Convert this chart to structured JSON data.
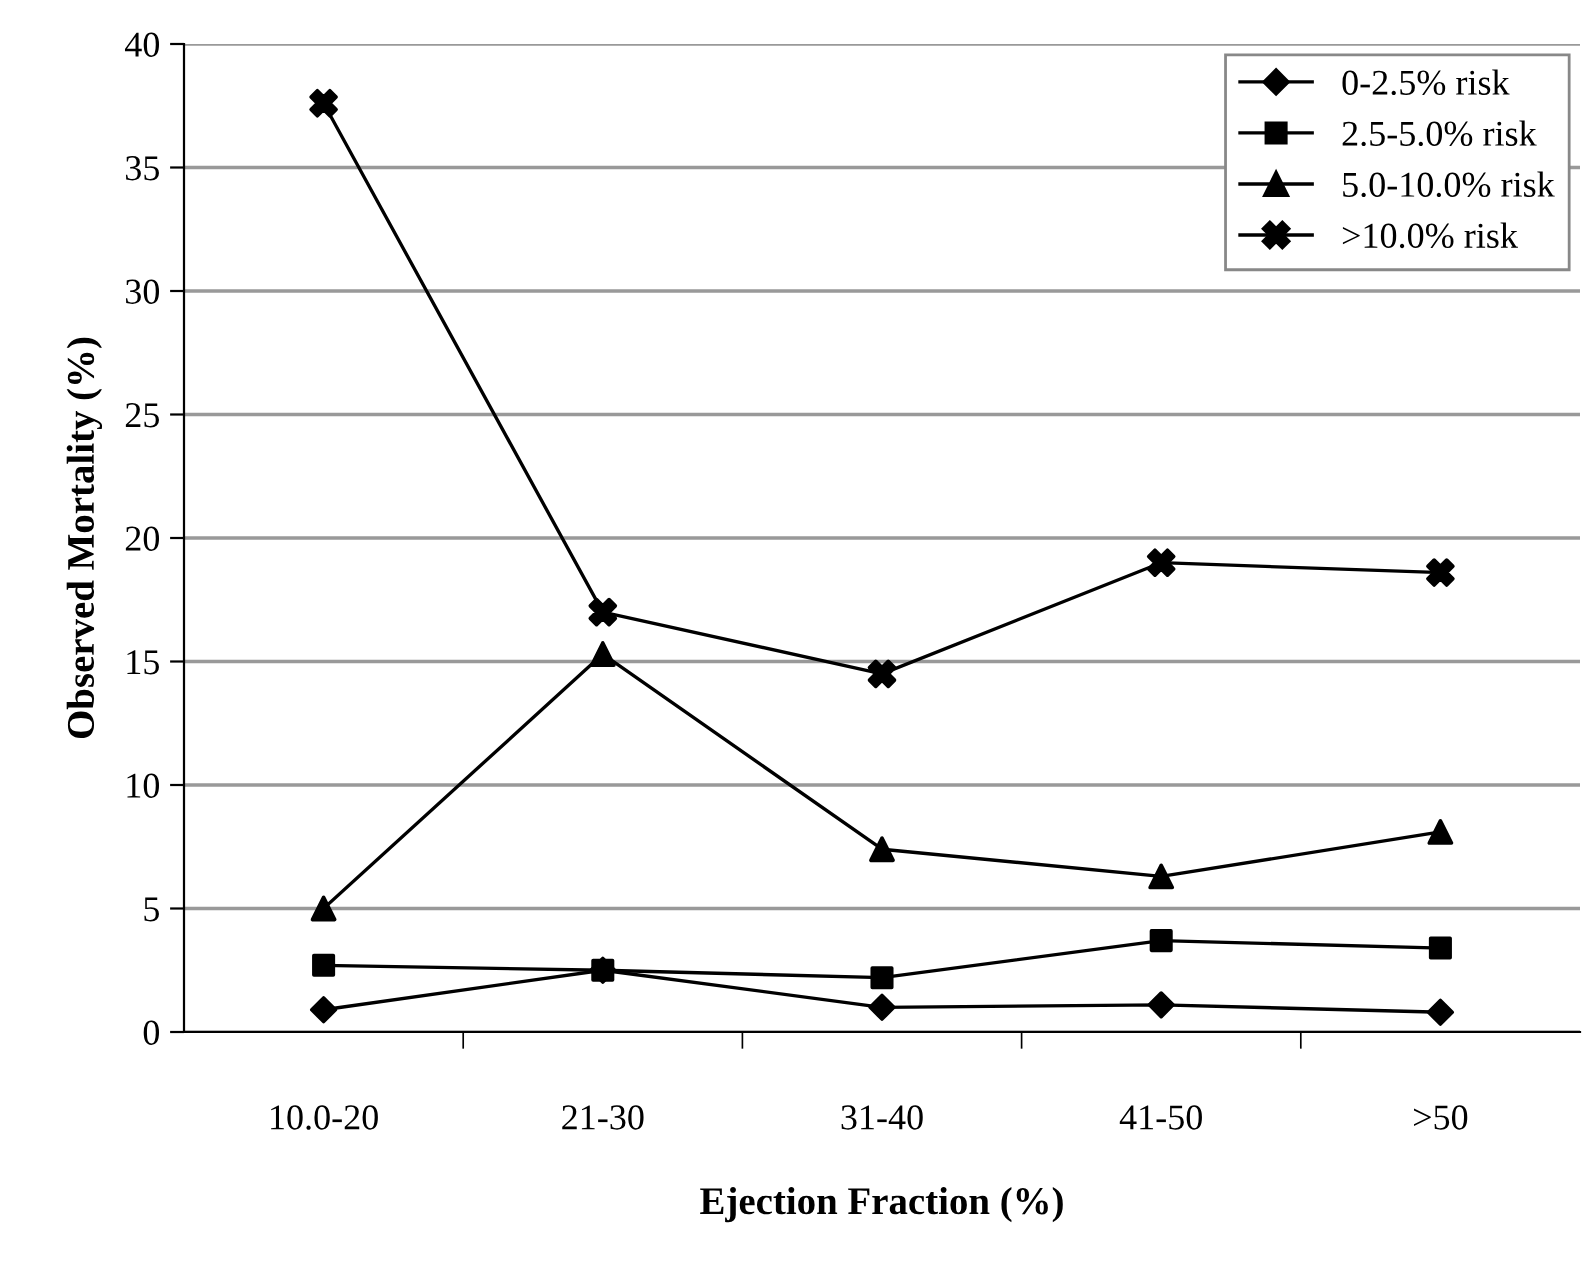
{
  "chart_data": {
    "type": "line",
    "xlabel": "Ejection Fraction (%)",
    "ylabel": "Observed Mortality (%)",
    "categories": [
      "10.0-20",
      "21-30",
      "31-40",
      "41-50",
      ">50"
    ],
    "series": [
      {
        "name": "0-2.5% risk",
        "color": "#000000",
        "marker": "diamond",
        "values": [
          0.9,
          2.5,
          1.0,
          1.1,
          0.8
        ]
      },
      {
        "name": "2.5-5.0% risk",
        "color": "#000000",
        "marker": "square",
        "values": [
          2.7,
          2.5,
          2.2,
          3.7,
          3.4
        ]
      },
      {
        "name": "5.0-10.0% risk",
        "color": "#000000",
        "marker": "triangle",
        "values": [
          5.0,
          15.3,
          7.4,
          6.3,
          8.1
        ]
      },
      {
        "name": ">10.0% risk",
        "color": "#000000",
        "marker": "cross",
        "values": [
          37.6,
          17.0,
          14.5,
          19.0,
          18.6
        ]
      }
    ],
    "ylim": [
      0,
      40
    ],
    "yticks": [
      0,
      5,
      10,
      15,
      20,
      25,
      30,
      35,
      40
    ],
    "grid": "y",
    "legend": "top right",
    "line_style": "solid"
  }
}
